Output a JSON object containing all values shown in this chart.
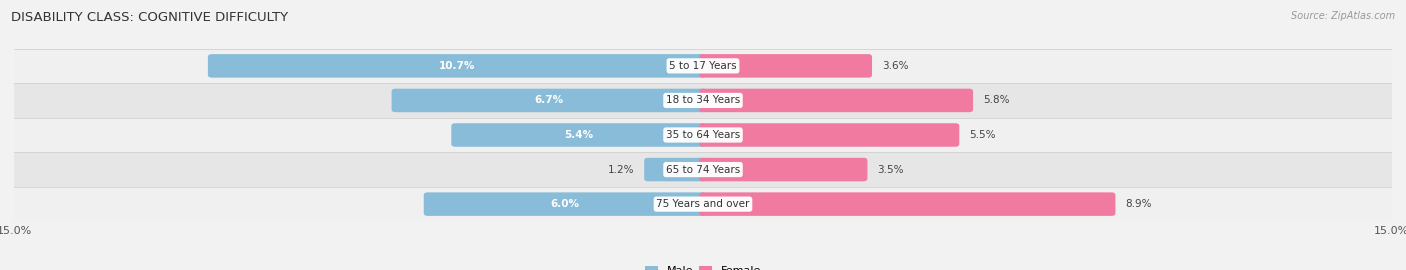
{
  "title": "DISABILITY CLASS: COGNITIVE DIFFICULTY",
  "source": "Source: ZipAtlas.com",
  "categories": [
    "5 to 17 Years",
    "18 to 34 Years",
    "35 to 64 Years",
    "65 to 74 Years",
    "75 Years and over"
  ],
  "male_values": [
    10.7,
    6.7,
    5.4,
    1.2,
    6.0
  ],
  "female_values": [
    3.6,
    5.8,
    5.5,
    3.5,
    8.9
  ],
  "max_val": 15.0,
  "male_color": "#88bcd8",
  "female_color": "#f07aa0",
  "row_colors": [
    "#f0f0f0",
    "#e6e6e6",
    "#f0f0f0",
    "#e6e6e6",
    "#f0f0f0"
  ],
  "title_fontsize": 9.5,
  "label_fontsize": 7.5,
  "bar_height": 0.52,
  "axis_label_fontsize": 8
}
